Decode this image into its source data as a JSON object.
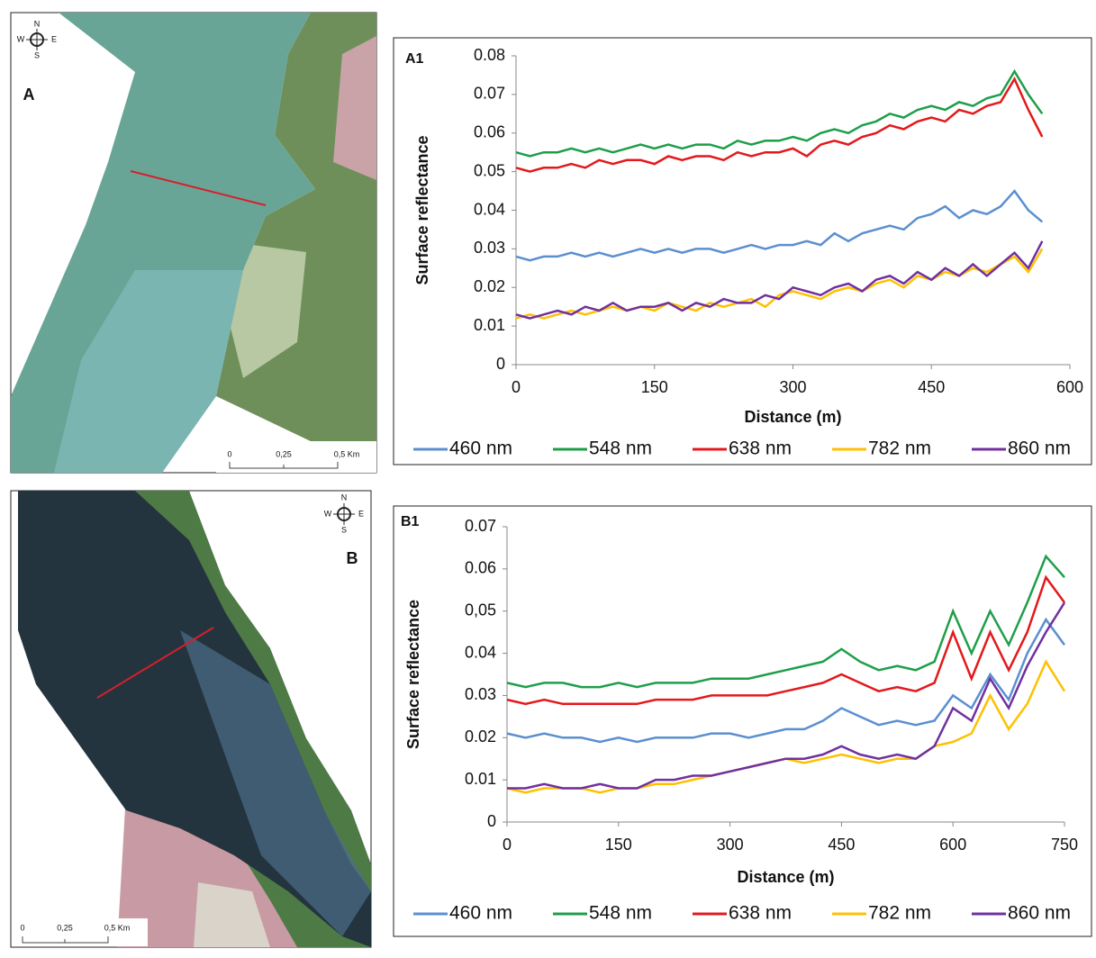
{
  "maps": [
    {
      "label": "A",
      "compass": [
        "N",
        "S",
        "E",
        "W"
      ],
      "scale_labels": [
        "0",
        "0,25",
        "0,5 Km"
      ]
    },
    {
      "label": "B",
      "compass": [
        "N",
        "S",
        "E",
        "W"
      ],
      "scale_labels": [
        "0",
        "0,25",
        "0,5 Km"
      ]
    }
  ],
  "chart_data": [
    {
      "type": "line",
      "title": "A1",
      "x_label": "Distance (m)",
      "y_label": "Surface reflectance",
      "x": [
        0,
        15,
        30,
        45,
        60,
        75,
        90,
        105,
        120,
        135,
        150,
        165,
        180,
        195,
        210,
        225,
        240,
        255,
        270,
        285,
        300,
        315,
        330,
        345,
        360,
        375,
        390,
        405,
        420,
        435,
        450,
        465,
        480,
        495,
        510,
        525,
        540,
        555,
        570
      ],
      "xlim": [
        0,
        600
      ],
      "xticks": [
        0,
        150,
        300,
        450,
        600
      ],
      "ylim": [
        0,
        0.08
      ],
      "yticks": [
        0,
        0.01,
        0.02,
        0.03,
        0.04,
        0.05,
        0.06,
        0.07,
        0.08
      ],
      "series": [
        {
          "name": "460 nm",
          "color": "#5b8fd0",
          "values": [
            0.028,
            0.027,
            0.028,
            0.028,
            0.029,
            0.028,
            0.029,
            0.028,
            0.029,
            0.03,
            0.029,
            0.03,
            0.029,
            0.03,
            0.03,
            0.029,
            0.03,
            0.031,
            0.03,
            0.031,
            0.031,
            0.032,
            0.031,
            0.034,
            0.032,
            0.034,
            0.035,
            0.036,
            0.035,
            0.038,
            0.039,
            0.041,
            0.038,
            0.04,
            0.039,
            0.041,
            0.045,
            0.04,
            0.037
          ]
        },
        {
          "name": "548 nm",
          "color": "#1f9e4a",
          "values": [
            0.055,
            0.054,
            0.055,
            0.055,
            0.056,
            0.055,
            0.056,
            0.055,
            0.056,
            0.057,
            0.056,
            0.057,
            0.056,
            0.057,
            0.057,
            0.056,
            0.058,
            0.057,
            0.058,
            0.058,
            0.059,
            0.058,
            0.06,
            0.061,
            0.06,
            0.062,
            0.063,
            0.065,
            0.064,
            0.066,
            0.067,
            0.066,
            0.068,
            0.067,
            0.069,
            0.07,
            0.076,
            0.07,
            0.065
          ]
        },
        {
          "name": "638 nm",
          "color": "#e3191c",
          "values": [
            0.051,
            0.05,
            0.051,
            0.051,
            0.052,
            0.051,
            0.053,
            0.052,
            0.053,
            0.053,
            0.052,
            0.054,
            0.053,
            0.054,
            0.054,
            0.053,
            0.055,
            0.054,
            0.055,
            0.055,
            0.056,
            0.054,
            0.057,
            0.058,
            0.057,
            0.059,
            0.06,
            0.062,
            0.061,
            0.063,
            0.064,
            0.063,
            0.066,
            0.065,
            0.067,
            0.068,
            0.074,
            0.066,
            0.059
          ]
        },
        {
          "name": "782 nm",
          "color": "#ffc000",
          "values": [
            0.012,
            0.013,
            0.012,
            0.013,
            0.014,
            0.013,
            0.014,
            0.015,
            0.014,
            0.015,
            0.014,
            0.016,
            0.015,
            0.014,
            0.016,
            0.015,
            0.016,
            0.017,
            0.015,
            0.018,
            0.019,
            0.018,
            0.017,
            0.019,
            0.02,
            0.019,
            0.021,
            0.022,
            0.02,
            0.023,
            0.022,
            0.024,
            0.023,
            0.025,
            0.024,
            0.026,
            0.028,
            0.024,
            0.03
          ]
        },
        {
          "name": "860 nm",
          "color": "#7030a0",
          "values": [
            0.013,
            0.012,
            0.013,
            0.014,
            0.013,
            0.015,
            0.014,
            0.016,
            0.014,
            0.015,
            0.015,
            0.016,
            0.014,
            0.016,
            0.015,
            0.017,
            0.016,
            0.016,
            0.018,
            0.017,
            0.02,
            0.019,
            0.018,
            0.02,
            0.021,
            0.019,
            0.022,
            0.023,
            0.021,
            0.024,
            0.022,
            0.025,
            0.023,
            0.026,
            0.023,
            0.026,
            0.029,
            0.025,
            0.032
          ]
        }
      ]
    },
    {
      "type": "line",
      "title": "B1",
      "x_label": "Distance (m)",
      "y_label": "Surface reflectance",
      "x": [
        0,
        25,
        50,
        75,
        100,
        125,
        150,
        175,
        200,
        225,
        250,
        275,
        300,
        325,
        350,
        375,
        400,
        425,
        450,
        475,
        500,
        525,
        550,
        575,
        600,
        625,
        650,
        675,
        700,
        725,
        750
      ],
      "xlim": [
        0,
        750
      ],
      "xticks": [
        0,
        150,
        300,
        450,
        600,
        750
      ],
      "ylim": [
        0,
        0.07
      ],
      "yticks": [
        0,
        0.01,
        0.02,
        0.03,
        0.04,
        {
          "value": 0.05,
          "label": "0,05"
        },
        0.06,
        0.07
      ],
      "series": [
        {
          "name": "460 nm",
          "color": "#5b8fd0",
          "values": [
            0.021,
            0.02,
            0.021,
            0.02,
            0.02,
            0.019,
            0.02,
            0.019,
            0.02,
            0.02,
            0.02,
            0.021,
            0.021,
            0.02,
            0.021,
            0.022,
            0.022,
            0.024,
            0.027,
            0.025,
            0.023,
            0.024,
            0.023,
            0.024,
            0.03,
            0.027,
            0.035,
            0.029,
            0.04,
            0.048,
            0.042
          ]
        },
        {
          "name": "548 nm",
          "color": "#1f9e4a",
          "values": [
            0.033,
            0.032,
            0.033,
            0.033,
            0.032,
            0.032,
            0.033,
            0.032,
            0.033,
            0.033,
            0.033,
            0.034,
            0.034,
            0.034,
            0.035,
            0.036,
            0.037,
            0.038,
            0.041,
            0.038,
            0.036,
            0.037,
            0.036,
            0.038,
            0.05,
            0.04,
            0.05,
            0.042,
            0.052,
            0.063,
            0.058
          ]
        },
        {
          "name": "638 nm",
          "color": "#e3191c",
          "values": [
            0.029,
            0.028,
            0.029,
            0.028,
            0.028,
            0.028,
            0.028,
            0.028,
            0.029,
            0.029,
            0.029,
            0.03,
            0.03,
            0.03,
            0.03,
            0.031,
            0.032,
            0.033,
            0.035,
            0.033,
            0.031,
            0.032,
            0.031,
            0.033,
            0.045,
            0.034,
            0.045,
            0.036,
            0.045,
            0.058,
            0.052
          ]
        },
        {
          "name": "782 nm",
          "color": "#ffc000",
          "values": [
            0.008,
            0.007,
            0.008,
            0.008,
            0.008,
            0.007,
            0.008,
            0.008,
            0.009,
            0.009,
            0.01,
            0.011,
            0.012,
            0.013,
            0.014,
            0.015,
            0.014,
            0.015,
            0.016,
            0.015,
            0.014,
            0.015,
            0.015,
            0.018,
            0.019,
            0.021,
            0.03,
            0.022,
            0.028,
            0.038,
            0.031
          ]
        },
        {
          "name": "860 nm",
          "color": "#7030a0",
          "values": [
            0.008,
            0.008,
            0.009,
            0.008,
            0.008,
            0.009,
            0.008,
            0.008,
            0.01,
            0.01,
            0.011,
            0.011,
            0.012,
            0.013,
            0.014,
            0.015,
            0.015,
            0.016,
            0.018,
            0.016,
            0.015,
            0.016,
            0.015,
            0.018,
            0.027,
            0.024,
            0.034,
            0.027,
            0.037,
            0.045,
            0.052
          ]
        }
      ]
    }
  ]
}
